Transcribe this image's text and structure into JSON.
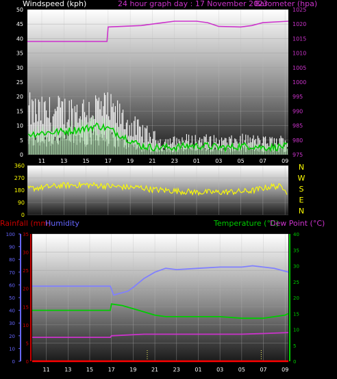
{
  "header": {
    "wind_title": "Windspeed (kph)",
    "graph_title": "24 hour graph day : 17 November 2023",
    "baro_title": "Barometer (hpa)"
  },
  "colors": {
    "background": "#000000",
    "plot_bg_top": "#ffffff",
    "plot_bg_bottom": "#1a1a1a",
    "gust": "#ffffff",
    "wind_avg": "#c8ffc8",
    "wind_dark": "#00cc00",
    "barometer": "#cc33cc",
    "direction": "#ffff00",
    "temperature": "#00cc00",
    "dewpoint": "#cc33cc",
    "humidity": "#8080ff",
    "rainfall": "#ff0000",
    "rain_axis": "#cc0000",
    "hum_axis": "#6666ff",
    "temp_axis": "#00cc00",
    "rain_marker": "#ffff66"
  },
  "panel3": {
    "rain_title": "Rainfall (mm)",
    "hum_title": "Humidity",
    "temp_title": "Temperature (°C)",
    "dew_title": "Dew Point (°C)"
  },
  "compass": [
    "N",
    "W",
    "S",
    "E",
    "N"
  ],
  "chart_data": [
    {
      "type": "line",
      "title": "",
      "x_tick_labels": [
        "11",
        "13",
        "15",
        "17",
        "19",
        "21",
        "23",
        "01",
        "03",
        "05",
        "07",
        "09"
      ],
      "xlim_hours": [
        9.7,
        33.3
      ],
      "ylabel": "Windspeed (kph)",
      "ylim": [
        0,
        50
      ],
      "y_ticks": [
        0,
        5,
        10,
        15,
        20,
        25,
        30,
        35,
        40,
        45,
        50
      ],
      "y2label": "Barometer (hpa)",
      "y2lim": [
        975,
        1025
      ],
      "y2_ticks": [
        975,
        980,
        985,
        990,
        995,
        1000,
        1005,
        1010,
        1015,
        1020,
        1025
      ],
      "series": [
        {
          "axis": "y2",
          "x_hours": [
            9.7,
            16.9,
            17.0,
            20,
            22,
            23,
            25,
            26,
            27,
            29,
            30,
            31,
            33.3
          ],
          "values": [
            1014,
            1014,
            1019,
            1019.5,
            1020.5,
            1021,
            1021,
            1020.5,
            1019.2,
            1019,
            1019.5,
            1020.5,
            1021
          ]
        },
        {
          "x_hours": [
            9.7,
            11,
            13,
            15,
            16,
            17,
            18,
            19,
            20,
            21,
            22,
            23,
            24,
            25,
            26,
            27,
            28,
            29,
            30,
            31,
            32,
            33.3
          ],
          "values": [
            15,
            14,
            14.5,
            15,
            16,
            15,
            13,
            10,
            8,
            6,
            4.5,
            4.5,
            5,
            5,
            5,
            4.5,
            4.5,
            5,
            5,
            4.5,
            4.5,
            5
          ]
        },
        {
          "x_hours": [
            9.7,
            11,
            13,
            15,
            16,
            17,
            18,
            19,
            20,
            21,
            22,
            23,
            24,
            25,
            26,
            27,
            28,
            29,
            30,
            31,
            32,
            33.3
          ],
          "values": [
            7,
            7.5,
            8,
            9,
            10,
            9,
            7,
            5,
            3,
            2.5,
            2.5,
            2.5,
            3,
            3,
            3,
            2.5,
            2.5,
            3,
            3,
            2.5,
            2.5,
            3
          ]
        }
      ]
    },
    {
      "type": "line",
      "x_tick_labels": [
        "11",
        "13",
        "15",
        "17",
        "19",
        "21",
        "23",
        "01",
        "03",
        "05",
        "07",
        "09"
      ],
      "xlim_hours": [
        9.7,
        33.3
      ],
      "ylim": [
        0,
        360
      ],
      "y_ticks": [
        0,
        90,
        180,
        270,
        360
      ],
      "series": [
        {
          "x_hours": [
            9.7,
            11,
            13,
            15,
            17,
            19,
            20,
            21,
            23,
            25,
            27,
            29,
            30,
            31,
            32,
            33,
            33.3
          ],
          "values": [
            190,
            200,
            215,
            220,
            210,
            200,
            200,
            185,
            175,
            165,
            165,
            170,
            175,
            195,
            210,
            200,
            140
          ]
        }
      ]
    },
    {
      "type": "line",
      "x_tick_labels": [
        "11",
        "13",
        "15",
        "17",
        "19",
        "21",
        "23",
        "01",
        "03",
        "05",
        "07",
        "09"
      ],
      "xlim_hours": [
        9.7,
        33.3
      ],
      "ylabel": "Rainfall (mm)",
      "ylim": [
        0,
        35
      ],
      "y_ticks": [
        0,
        5,
        10,
        15,
        20,
        25,
        30,
        35
      ],
      "y_left_outer_label": "Humidity",
      "y_left_outer_lim": [
        0,
        100
      ],
      "y_left_outer_ticks": [
        0,
        10,
        20,
        30,
        40,
        50,
        60,
        70,
        80,
        90,
        100
      ],
      "y2label": "Temperature (°C)",
      "y2lim": [
        0,
        40
      ],
      "y2_ticks": [
        0,
        5,
        10,
        15,
        20,
        25,
        30,
        35,
        40
      ],
      "series": [
        {
          "axis": "humidity",
          "x_hours": [
            9.7,
            16.9,
            17.2,
            18.5,
            19,
            20,
            21,
            22,
            23,
            25,
            27,
            29,
            30,
            31,
            32,
            33.3
          ],
          "values": [
            59,
            59,
            52,
            55,
            58,
            65,
            70,
            73,
            72,
            73,
            74,
            74,
            75,
            74,
            73,
            70
          ]
        },
        {
          "axis": "y2",
          "x_hours": [
            9.7,
            16.9,
            17.0,
            18,
            19,
            20,
            21,
            22,
            23,
            25,
            27,
            29,
            31,
            32,
            33,
            33.3
          ],
          "values": [
            16,
            16,
            18,
            17.5,
            16.5,
            15.5,
            14.5,
            14,
            14,
            14,
            14,
            13.5,
            13.5,
            14,
            14.5,
            15
          ]
        },
        {
          "axis": "y2",
          "x_hours": [
            9.7,
            16.9,
            17.0,
            20,
            23,
            25,
            27,
            29,
            31,
            33.3
          ],
          "values": [
            7.5,
            7.5,
            8,
            8.5,
            8.5,
            8.5,
            8.5,
            8.5,
            8.7,
            9
          ]
        },
        {
          "axis": "y",
          "x_hours": [
            9.7,
            33.3
          ],
          "values": [
            0,
            0
          ]
        }
      ]
    }
  ]
}
